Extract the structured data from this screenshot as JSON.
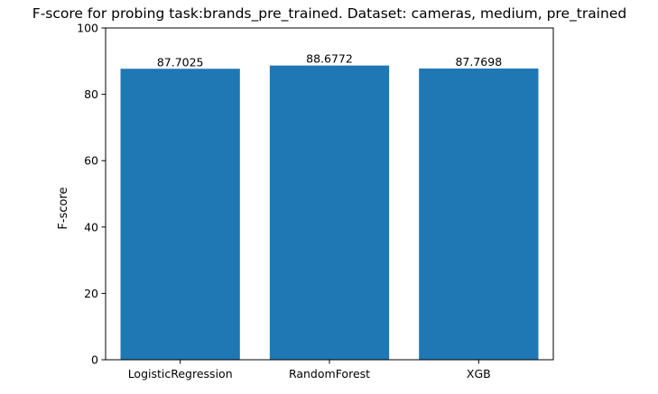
{
  "chart_data": {
    "type": "bar",
    "title": "F-score for probing task:brands_pre_trained. Dataset: cameras, medium, pre_trained",
    "xlabel": "",
    "ylabel": "F-score",
    "categories": [
      "LogisticRegression",
      "RandomForest",
      "XGB"
    ],
    "values": [
      87.7025,
      88.6772,
      87.7698
    ],
    "value_labels": [
      "87.7025",
      "88.6772",
      "87.7698"
    ],
    "ylim": [
      0,
      100
    ],
    "yticks": [
      0,
      20,
      40,
      60,
      80,
      100
    ],
    "grid": false,
    "legend": "none",
    "colors": {
      "bar": "#1f77b4",
      "axis": "#000000",
      "text": "#000000",
      "background": "#ffffff"
    }
  }
}
